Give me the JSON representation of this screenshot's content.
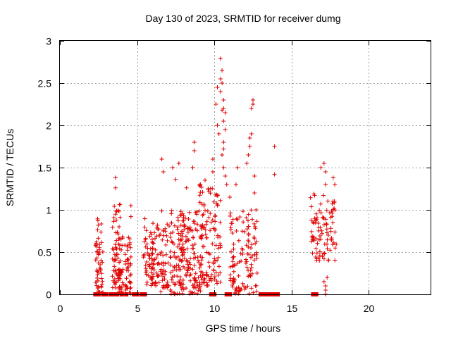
{
  "chart_data": {
    "type": "scatter",
    "title": "Day 130 of 2023, SRMTID for receiver dumg",
    "xlabel": "GPS time / hours",
    "ylabel": "SRMTID / TECUs",
    "xlim": [
      0,
      24
    ],
    "ylim": [
      0,
      3
    ],
    "xticks": [
      "0",
      "5",
      "10",
      "15",
      "20"
    ],
    "yticks": [
      "0",
      "0.5",
      "1",
      "1.5",
      "2",
      "2.5",
      "3"
    ],
    "grid": true,
    "marker": "plus",
    "color": "#e00000",
    "series": [
      {
        "name": "SRMTID",
        "clusters": [
          {
            "x0": 2.3,
            "x1": 2.8,
            "ymin": 0.0,
            "ymax": 0.9,
            "n": 55,
            "seed": 11
          },
          {
            "x0": 3.4,
            "x1": 3.9,
            "ymin": 0.0,
            "ymax": 1.1,
            "n": 60,
            "seed": 12
          },
          {
            "x0": 3.8,
            "x1": 4.6,
            "ymin": 0.0,
            "ymax": 0.7,
            "n": 75,
            "seed": 13
          },
          {
            "x0": 5.4,
            "x1": 6.5,
            "ymin": 0.1,
            "ymax": 0.9,
            "n": 90,
            "seed": 14
          },
          {
            "x0": 6.5,
            "x1": 8.0,
            "ymin": 0.0,
            "ymax": 1.0,
            "n": 120,
            "seed": 15
          },
          {
            "x0": 7.8,
            "x1": 9.3,
            "ymin": 0.0,
            "ymax": 1.0,
            "n": 120,
            "seed": 16
          },
          {
            "x0": 9.0,
            "x1": 10.4,
            "ymin": 0.1,
            "ymax": 1.3,
            "n": 115,
            "seed": 17
          },
          {
            "x0": 11.0,
            "x1": 12.8,
            "ymin": 0.0,
            "ymax": 1.0,
            "n": 120,
            "seed": 18
          },
          {
            "x0": 16.2,
            "x1": 17.9,
            "ymin": 0.4,
            "ymax": 1.2,
            "n": 95,
            "seed": 19
          }
        ],
        "points": [
          [
            3.6,
            1.38
          ],
          [
            3.6,
            1.26
          ],
          [
            4.6,
            1.05
          ],
          [
            4.6,
            0.92
          ],
          [
            6.6,
            1.6
          ],
          [
            6.7,
            1.45
          ],
          [
            7.3,
            1.5
          ],
          [
            7.5,
            1.36
          ],
          [
            7.7,
            1.55
          ],
          [
            8.2,
            1.26
          ],
          [
            8.7,
            1.8
          ],
          [
            8.7,
            1.7
          ],
          [
            8.6,
            1.5
          ],
          [
            9.1,
            1.3
          ],
          [
            9.4,
            1.35
          ],
          [
            9.6,
            1.25
          ],
          [
            9.9,
            1.6
          ],
          [
            9.9,
            1.45
          ],
          [
            10.2,
            2.0
          ],
          [
            10.3,
            1.9
          ],
          [
            10.1,
            2.25
          ],
          [
            10.2,
            2.45
          ],
          [
            10.4,
            2.79
          ],
          [
            10.5,
            2.65
          ],
          [
            10.4,
            2.55
          ],
          [
            10.5,
            2.5
          ],
          [
            10.4,
            2.4
          ],
          [
            10.6,
            2.3
          ],
          [
            10.6,
            2.2
          ],
          [
            10.5,
            2.18
          ],
          [
            10.7,
            2.15
          ],
          [
            10.6,
            2.05
          ],
          [
            10.7,
            1.95
          ],
          [
            10.6,
            1.8
          ],
          [
            10.6,
            1.72
          ],
          [
            10.5,
            1.65
          ],
          [
            10.6,
            1.5
          ],
          [
            10.7,
            1.4
          ],
          [
            10.8,
            1.3
          ],
          [
            11.0,
            1.15
          ],
          [
            11.5,
            1.5
          ],
          [
            11.4,
            1.3
          ],
          [
            12.1,
            1.55
          ],
          [
            12.2,
            1.65
          ],
          [
            12.3,
            1.75
          ],
          [
            12.4,
            1.9
          ],
          [
            12.3,
            1.85
          ],
          [
            12.5,
            2.3
          ],
          [
            12.4,
            2.2
          ],
          [
            12.5,
            2.25
          ],
          [
            12.6,
            1.4
          ],
          [
            12.6,
            1.2
          ],
          [
            12.7,
            1.0
          ],
          [
            13.9,
            1.75
          ],
          [
            13.9,
            1.42
          ],
          [
            16.9,
            1.5
          ],
          [
            17.1,
            1.55
          ],
          [
            17.2,
            1.45
          ],
          [
            17.2,
            1.3
          ],
          [
            17.7,
            1.38
          ],
          [
            17.8,
            1.3
          ],
          [
            17.1,
            0.15
          ],
          [
            17.2,
            0.05
          ],
          [
            17.2,
            0.1
          ],
          [
            17.3,
            0.2
          ],
          [
            17.2,
            0.0
          ]
        ],
        "zeros": [
          2.3,
          2.5,
          2.8,
          3.0,
          3.3,
          3.5,
          3.7,
          4.0,
          4.3,
          4.8,
          5.0,
          5.3,
          5.5,
          9.8,
          10.0,
          10.8,
          11.0,
          13.0,
          13.2,
          13.4,
          13.6,
          13.8,
          13.9,
          14.1,
          16.4,
          16.6
        ]
      }
    ]
  }
}
